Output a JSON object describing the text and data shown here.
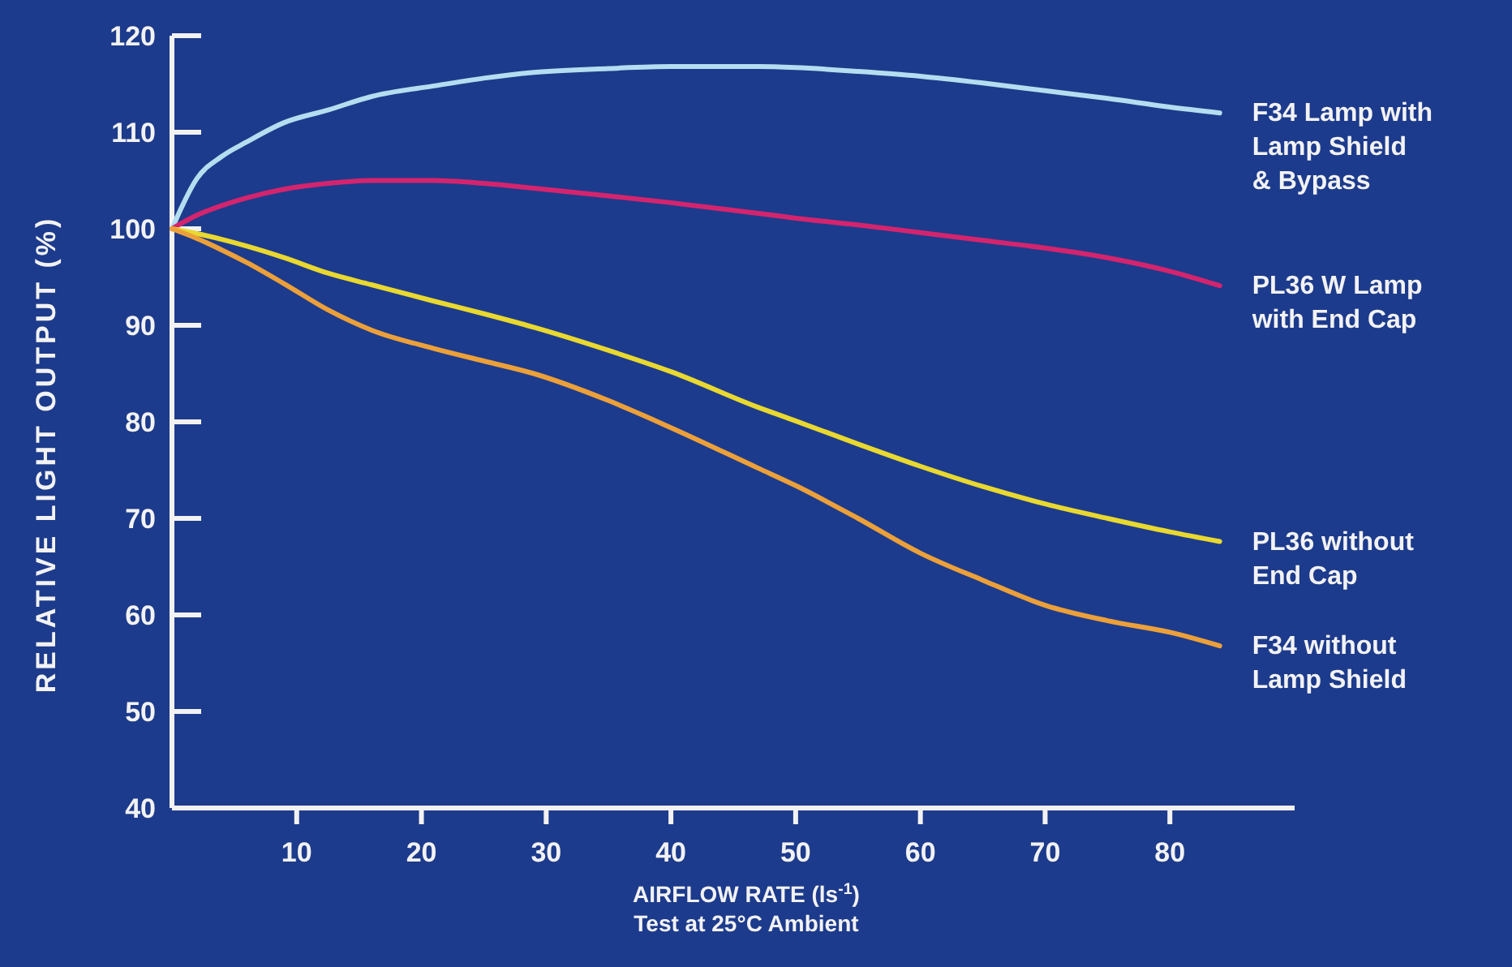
{
  "chart_data": {
    "type": "line",
    "xlabel": "AIRFLOW RATE (ls$^{-1}$)",
    "ylabel": "RELATIVE LIGHT OUTPUT (%)",
    "annotations": [
      "Test at 25°C Ambient"
    ],
    "xlim": [
      0,
      90
    ],
    "ylim": [
      40,
      120
    ],
    "xticks": [
      10,
      20,
      30,
      40,
      50,
      60,
      70,
      80
    ],
    "yticks": [
      40,
      50,
      60,
      70,
      80,
      90,
      100,
      110,
      120
    ],
    "grid": false,
    "legend": false,
    "marker": "none",
    "line_style": "solid",
    "x": [
      0,
      2,
      4,
      6,
      9,
      12.5,
      16,
      21,
      25,
      29,
      35,
      40,
      47,
      50,
      55,
      60,
      65,
      70,
      75,
      80,
      84
    ],
    "series": [
      {
        "name": "F34 Lamp with\nLamp Shield\n& Bypass",
        "color": "#b4def0",
        "values": [
          100,
          105.2,
          107.5,
          109,
          111,
          112.3,
          113.7,
          114.8,
          115.6,
          116.2,
          116.6,
          116.8,
          116.8,
          116.7,
          116.3,
          115.8,
          115.1,
          114.3,
          113.5,
          112.6,
          112
        ]
      },
      {
        "name": "PL36 W Lamp\nwith End Cap",
        "color": "#d4246e",
        "values": [
          100,
          101.4,
          102.4,
          103.2,
          104.1,
          104.7,
          105,
          105,
          104.7,
          104.2,
          103.4,
          102.7,
          101.6,
          101.1,
          100.4,
          99.6,
          98.8,
          98,
          97,
          95.6,
          94.1
        ]
      },
      {
        "name": "PL36 without\nEnd Cap",
        "color": "#e8d830",
        "values": [
          100,
          99.5,
          98.9,
          98.2,
          97,
          95.4,
          94.2,
          92.5,
          91.2,
          89.8,
          87.4,
          85.2,
          81.5,
          80.1,
          77.7,
          75.4,
          73.3,
          71.5,
          70,
          68.6,
          67.6
        ]
      },
      {
        "name": "F34 without\nLamp Shield",
        "color": "#eca03a",
        "values": [
          100,
          99,
          97.8,
          96.5,
          94.3,
          91.6,
          89.5,
          87.6,
          86.3,
          85,
          82.2,
          79.4,
          75.2,
          73.4,
          70,
          66.4,
          63.6,
          61,
          59.4,
          58.2,
          56.8
        ]
      }
    ]
  }
}
